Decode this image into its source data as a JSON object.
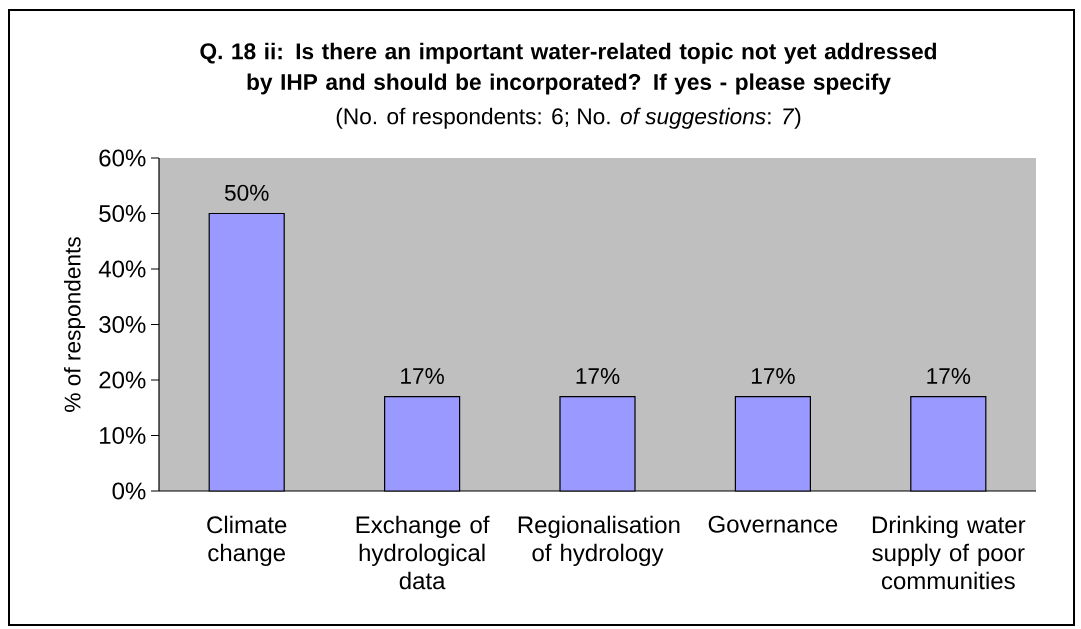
{
  "chart_data": {
    "type": "bar",
    "title": "Q. 18 ii: Is there an important water-related topic not yet addressed by IHP and should be incorporated? If yes - please specify",
    "subtitle": "(No. of respondents: 6; No. *of suggestions*: *7*)",
    "ylabel": "% of respondents",
    "categories": [
      "Climate change",
      "Exchange of hydrological data",
      "Regionalisation of hydrology",
      "Governance",
      "Drinking water supply of poor communities"
    ],
    "values": [
      50,
      17,
      17,
      17,
      17
    ],
    "value_labels": [
      "50%",
      "17%",
      "17%",
      "17%",
      "17%"
    ],
    "color": "#9999ff",
    "ylim": [
      0,
      60
    ],
    "yticks": [
      {
        "value": 0,
        "label": "0%"
      },
      {
        "value": 10,
        "label": "10%"
      },
      {
        "value": 20,
        "label": "20%"
      },
      {
        "value": 30,
        "label": "30%"
      },
      {
        "value": 40,
        "label": "40%"
      },
      {
        "value": 50,
        "label": "50%"
      },
      {
        "value": 60,
        "label": "60%"
      }
    ]
  }
}
